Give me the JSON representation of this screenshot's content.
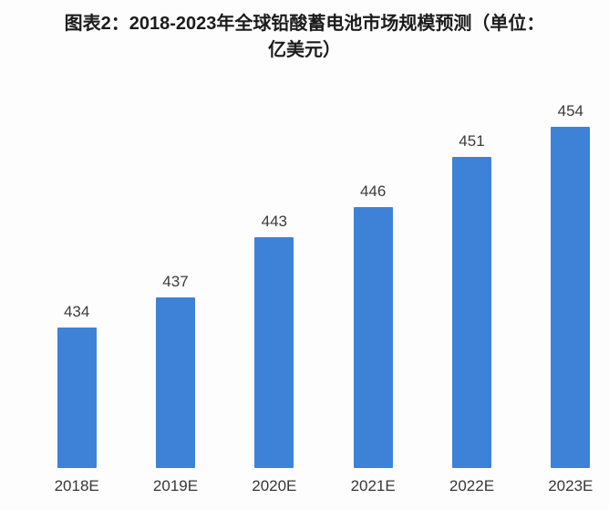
{
  "header": {
    "title_line1": "图表2：2018-2023年全球铅酸蓄电池市场规模预测（单位：",
    "title_line2": "亿美元）"
  },
  "chart_data": {
    "type": "bar",
    "title": "图表2：2018-2023年全球铅酸蓄电池市场规模预测（单位：亿美元）",
    "categories": [
      "2018E",
      "2019E",
      "2020E",
      "2021E",
      "2022E",
      "2023E"
    ],
    "values": [
      434,
      437,
      443,
      446,
      451,
      454
    ],
    "value_labels_shown": true,
    "bar_color": "#3e82d8",
    "ylim": [
      420,
      460
    ],
    "grid": false,
    "legend": false,
    "axis_lines": false
  }
}
